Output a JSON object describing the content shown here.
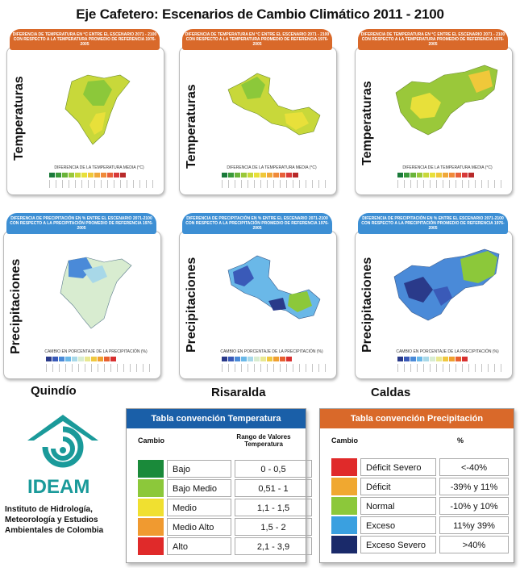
{
  "title": "Eje Cafetero:  Escenarios de Cambio Climático 2011 - 2100",
  "temp_banner": "DIFERENCIA DE TEMPERATURA EN °C ENTRE EL ESCENARIO 2071 - 2100 CON RESPECTO A LA TEMPERATURA PROMEDIO DE REFERENCIA 1976-2005",
  "precip_banner": "DIFERENCIA DE PRECIPITACIÓN EN % ENTRE EL ESCENARIO 2071-2100 CON RESPECTO A LA PRECIPITACIÓN PROMEDIO DE REFERENCIA 1976-2005",
  "temp_row_label": "Temperaturas",
  "precip_row_label": "Precipitaciones",
  "temp_legend_title": "DIFERENCIA DE LA TEMPERATURA MEDIA (°C)",
  "precip_legend_title": "CAMBIO EN PORCENTAJE DE LA PRECIPITACIÓN (%)",
  "departments": [
    "Quindío",
    "Risaralda",
    "Caldas"
  ],
  "temp_legend_colors": [
    "#1a7a3a",
    "#3a9a3a",
    "#6ab43a",
    "#9ac83a",
    "#c8d83a",
    "#e8e03a",
    "#f0c83a",
    "#f0a83a",
    "#f08a3a",
    "#e8603a",
    "#d83a3a",
    "#b82a2a"
  ],
  "precip_legend_colors": [
    "#2a3a8a",
    "#3a5ab8",
    "#4a8ad8",
    "#6ab8e8",
    "#a8d8e8",
    "#d8ecd0",
    "#e8e890",
    "#f0c840",
    "#f0a030",
    "#e86030",
    "#d83030"
  ],
  "ideam": {
    "name": "IDEAM",
    "institute": "Instituto de Hidrología, Meteorología y Estudios Ambientales de Colombia"
  },
  "temp_table": {
    "title": "Tabla convención Temperatura",
    "col_change": "Cambio",
    "col_range": "Rango de Valores Temperatura",
    "rows": [
      {
        "label": "Bajo",
        "value": "0 - 0,5",
        "color": "#1a8a3a"
      },
      {
        "label": "Bajo Medio",
        "value": "0,51 - 1",
        "color": "#8cc83a"
      },
      {
        "label": "Medio",
        "value": "1,1 - 1,5",
        "color": "#f0e030"
      },
      {
        "label": "Medio Alto",
        "value": "1,5 - 2",
        "color": "#f09a30"
      },
      {
        "label": "Alto",
        "value": "2,1 - 3,9",
        "color": "#e02a2a"
      }
    ]
  },
  "precip_table": {
    "title": "Tabla convención Precipitación",
    "col_change": "Cambio",
    "col_pct": "%",
    "rows": [
      {
        "label": "Déficit Severo",
        "value": "<-40%",
        "color": "#e02a2a"
      },
      {
        "label": "Déficit",
        "value": "-39% y 11%",
        "color": "#f0a830"
      },
      {
        "label": "Normal",
        "value": "-10% y 10%",
        "color": "#8cc83a"
      },
      {
        "label": "Exceso",
        "value": "11%y 39%",
        "color": "#3aa0e0"
      },
      {
        "label": "Exceso Severo",
        "value": ">40%",
        "color": "#1a2a6a"
      }
    ]
  }
}
